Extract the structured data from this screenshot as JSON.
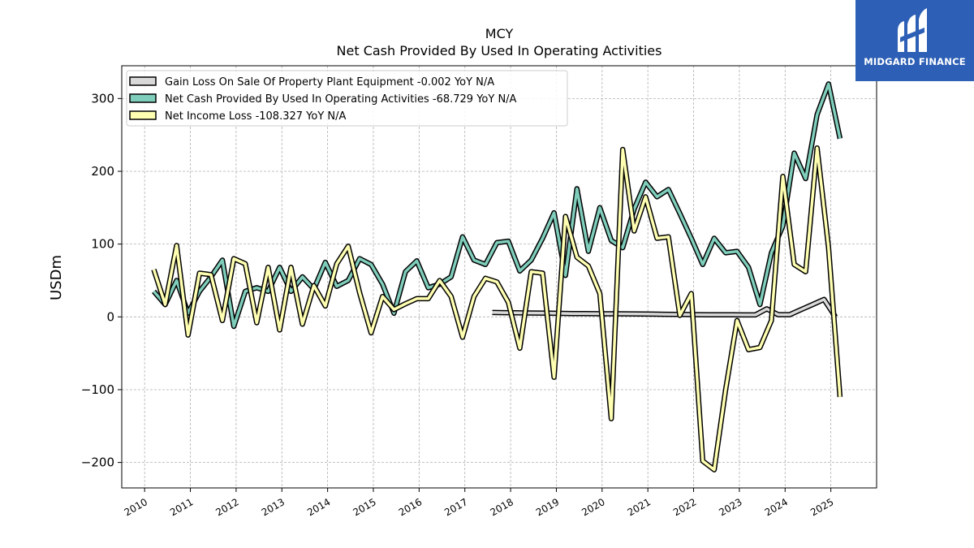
{
  "brand": {
    "name": "MIDGARD FINANCE",
    "bg_color": "#2c5fb5"
  },
  "chart_data": {
    "type": "line",
    "title": "MCY",
    "subtitle": "Net Cash Provided By Used In Operating Activities",
    "xlabel": "",
    "ylabel": "USDm",
    "xlim": [
      2009.5,
      2026.0
    ],
    "ylim": [
      -235,
      345
    ],
    "x_ticks": [
      2010,
      2011,
      2012,
      2013,
      2014,
      2015,
      2016,
      2017,
      2018,
      2019,
      2020,
      2021,
      2022,
      2023,
      2024,
      2025
    ],
    "y_ticks": [
      -200,
      -100,
      0,
      100,
      200,
      300
    ],
    "y_tick_labels": [
      "−200",
      "−100",
      "0",
      "100",
      "200",
      "300"
    ],
    "grid": true,
    "legend_position": "top-left",
    "series": [
      {
        "name": "Gain Loss On Sale Of Property Plant Equipment  -0.002 YoY N/A",
        "color": "#d9d9d9",
        "x": [
          2017.6,
          2017.85,
          2018.1,
          2018.35,
          2018.6,
          2018.85,
          2019.1,
          2019.35,
          2019.6,
          2019.85,
          2020.1,
          2020.35,
          2020.6,
          2020.85,
          2021.1,
          2021.35,
          2021.6,
          2021.85,
          2022.1,
          2022.35,
          2022.6,
          2022.85,
          2023.1,
          2023.35,
          2023.6,
          2023.85,
          2024.1,
          2024.35,
          2024.6,
          2024.85,
          2025.1
        ],
        "y": [
          6,
          5.8,
          5.6,
          5.4,
          5.2,
          5,
          4.8,
          4.6,
          4.5,
          4.4,
          4.3,
          4.2,
          4.1,
          4,
          3.8,
          3.6,
          3.4,
          3.2,
          3,
          2.9,
          2.8,
          2.8,
          2.7,
          2.7,
          11,
          3,
          3,
          10,
          17,
          24,
          0
        ]
      },
      {
        "name": "Net Cash Provided By Used In Operating Activities  -68.729 YoY N/A",
        "color": "#7fcdbb",
        "x": [
          2010.2,
          2010.45,
          2010.7,
          2010.95,
          2011.2,
          2011.45,
          2011.7,
          2011.95,
          2012.2,
          2012.45,
          2012.7,
          2012.95,
          2013.2,
          2013.45,
          2013.7,
          2013.95,
          2014.2,
          2014.45,
          2014.7,
          2014.95,
          2015.2,
          2015.45,
          2015.7,
          2015.95,
          2016.2,
          2016.45,
          2016.7,
          2016.95,
          2017.2,
          2017.45,
          2017.7,
          2017.95,
          2018.2,
          2018.45,
          2018.7,
          2018.95,
          2019.2,
          2019.45,
          2019.7,
          2019.95,
          2020.2,
          2020.45,
          2020.7,
          2020.95,
          2021.2,
          2021.45,
          2021.7,
          2021.95,
          2022.2,
          2022.45,
          2022.7,
          2022.95,
          2023.2,
          2023.45,
          2023.7,
          2023.95,
          2024.2,
          2024.45,
          2024.7,
          2024.95,
          2025.2
        ],
        "y": [
          35,
          17,
          50,
          5,
          35,
          55,
          78,
          -13,
          35,
          40,
          35,
          68,
          35,
          55,
          38,
          75,
          42,
          50,
          80,
          72,
          45,
          5,
          62,
          77,
          40,
          45,
          55,
          110,
          78,
          72,
          102,
          104,
          63,
          78,
          108,
          143,
          57,
          176,
          90,
          150,
          105,
          95,
          148,
          185,
          165,
          175,
          142,
          108,
          72,
          108,
          88,
          90,
          68,
          17,
          88,
          125,
          225,
          190,
          278,
          320,
          245
        ]
      },
      {
        "name": "Net Income Loss  -108.327 YoY N/A",
        "color": "#ffffb2",
        "x": [
          2010.2,
          2010.45,
          2010.7,
          2010.95,
          2011.2,
          2011.45,
          2011.7,
          2011.95,
          2012.2,
          2012.45,
          2012.7,
          2012.95,
          2013.2,
          2013.45,
          2013.7,
          2013.95,
          2014.2,
          2014.45,
          2014.7,
          2014.95,
          2015.2,
          2015.45,
          2015.7,
          2015.95,
          2016.2,
          2016.45,
          2016.7,
          2016.95,
          2017.2,
          2017.45,
          2017.7,
          2017.95,
          2018.2,
          2018.45,
          2018.7,
          2018.95,
          2019.2,
          2019.45,
          2019.7,
          2019.95,
          2020.2,
          2020.45,
          2020.7,
          2020.95,
          2021.2,
          2021.45,
          2021.7,
          2021.95,
          2022.2,
          2022.45,
          2022.7,
          2022.95,
          2023.2,
          2023.45,
          2023.7,
          2023.95,
          2024.2,
          2024.45,
          2024.7,
          2024.95,
          2025.2
        ],
        "y": [
          65,
          17,
          98,
          -25,
          60,
          58,
          -5,
          80,
          73,
          -8,
          68,
          -18,
          68,
          -10,
          43,
          15,
          73,
          97,
          33,
          -22,
          28,
          10,
          18,
          25,
          25,
          50,
          28,
          -28,
          28,
          53,
          48,
          20,
          -43,
          62,
          60,
          -83,
          138,
          82,
          70,
          32,
          -140,
          230,
          118,
          165,
          108,
          110,
          2,
          32,
          -198,
          -210,
          -100,
          -5,
          -45,
          -42,
          -5,
          193,
          72,
          62,
          232,
          95,
          -110
        ]
      }
    ]
  }
}
